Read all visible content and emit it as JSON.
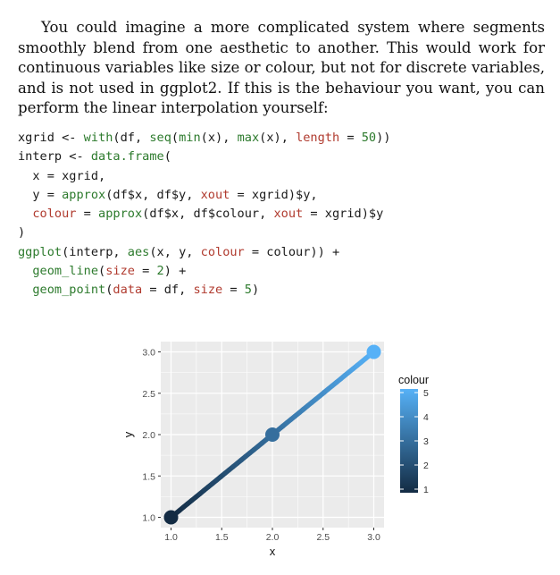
{
  "paragraph": "You could imagine a more complicated system where segments smoothly blend from one aesthetic to another. This would work for continuous variables like size or colour, but not for discrete variables, and is not used in ggplot2. If this is the behaviour you want, you can perform the linear interpolation yourself:",
  "code": {
    "lines": [
      [
        {
          "t": "xgrid <- ",
          "c": "s"
        },
        {
          "t": "with",
          "c": "k"
        },
        {
          "t": "(df, ",
          "c": "s"
        },
        {
          "t": "seq",
          "c": "k"
        },
        {
          "t": "(",
          "c": "s"
        },
        {
          "t": "min",
          "c": "k"
        },
        {
          "t": "(x), ",
          "c": "s"
        },
        {
          "t": "max",
          "c": "k"
        },
        {
          "t": "(x), ",
          "c": "s"
        },
        {
          "t": "length",
          "c": "a"
        },
        {
          "t": " = ",
          "c": "s"
        },
        {
          "t": "50",
          "c": "k"
        },
        {
          "t": "))",
          "c": "s"
        }
      ],
      [
        {
          "t": "interp <- ",
          "c": "s"
        },
        {
          "t": "data.frame",
          "c": "k"
        },
        {
          "t": "(",
          "c": "s"
        }
      ],
      [
        {
          "t": "  x = xgrid,",
          "c": "s"
        }
      ],
      [
        {
          "t": "  y = ",
          "c": "s"
        },
        {
          "t": "approx",
          "c": "k"
        },
        {
          "t": "(df$x, df$y, ",
          "c": "s"
        },
        {
          "t": "xout",
          "c": "a"
        },
        {
          "t": " = xgrid)$y,",
          "c": "s"
        }
      ],
      [
        {
          "t": "  colour",
          "c": "a"
        },
        {
          "t": " = ",
          "c": "s"
        },
        {
          "t": "approx",
          "c": "k"
        },
        {
          "t": "(df$x, df$colour, ",
          "c": "s"
        },
        {
          "t": "xout",
          "c": "a"
        },
        {
          "t": " = xgrid)$y",
          "c": "s"
        }
      ],
      [
        {
          "t": ")",
          "c": "s"
        }
      ],
      [
        {
          "t": "ggplot",
          "c": "k"
        },
        {
          "t": "(interp, ",
          "c": "s"
        },
        {
          "t": "aes",
          "c": "k"
        },
        {
          "t": "(x, y, ",
          "c": "s"
        },
        {
          "t": "colour",
          "c": "a"
        },
        {
          "t": " = colour)) +",
          "c": "s"
        }
      ],
      [
        {
          "t": "  geom_line",
          "c": "k"
        },
        {
          "t": "(",
          "c": "s"
        },
        {
          "t": "size",
          "c": "a"
        },
        {
          "t": " = ",
          "c": "s"
        },
        {
          "t": "2",
          "c": "k"
        },
        {
          "t": ") +",
          "c": "s"
        }
      ],
      [
        {
          "t": "  geom_point",
          "c": "k"
        },
        {
          "t": "(",
          "c": "s"
        },
        {
          "t": "data",
          "c": "a"
        },
        {
          "t": " = df, ",
          "c": "s"
        },
        {
          "t": "size",
          "c": "a"
        },
        {
          "t": " = ",
          "c": "s"
        },
        {
          "t": "5",
          "c": "k"
        },
        {
          "t": ")",
          "c": "s"
        }
      ]
    ]
  },
  "chart_data": {
    "type": "line",
    "xlabel": "x",
    "ylabel": "y",
    "xlim": [
      1.0,
      3.0
    ],
    "ylim": [
      1.0,
      3.0
    ],
    "x_ticks": [
      "1.0",
      "1.5",
      "2.0",
      "2.5",
      "3.0"
    ],
    "y_ticks": [
      "1.0",
      "1.5",
      "2.0",
      "2.5",
      "3.0"
    ],
    "line": {
      "x": [
        1,
        3
      ],
      "y": [
        1,
        3
      ],
      "colour": [
        1,
        5
      ]
    },
    "points": {
      "x": [
        1,
        2,
        3
      ],
      "y": [
        1,
        2,
        3
      ],
      "colour": [
        1,
        3,
        5
      ]
    },
    "legend": {
      "title": "colour",
      "labels": [
        "5",
        "4",
        "3",
        "2",
        "1"
      ],
      "values": [
        5,
        4,
        3,
        2,
        1
      ],
      "placement": "right"
    },
    "colors": {
      "low": "#132B43",
      "high": "#56B1F7",
      "panel": "#EBEBEB",
      "grid": "#FFFFFF"
    },
    "grid": true
  }
}
